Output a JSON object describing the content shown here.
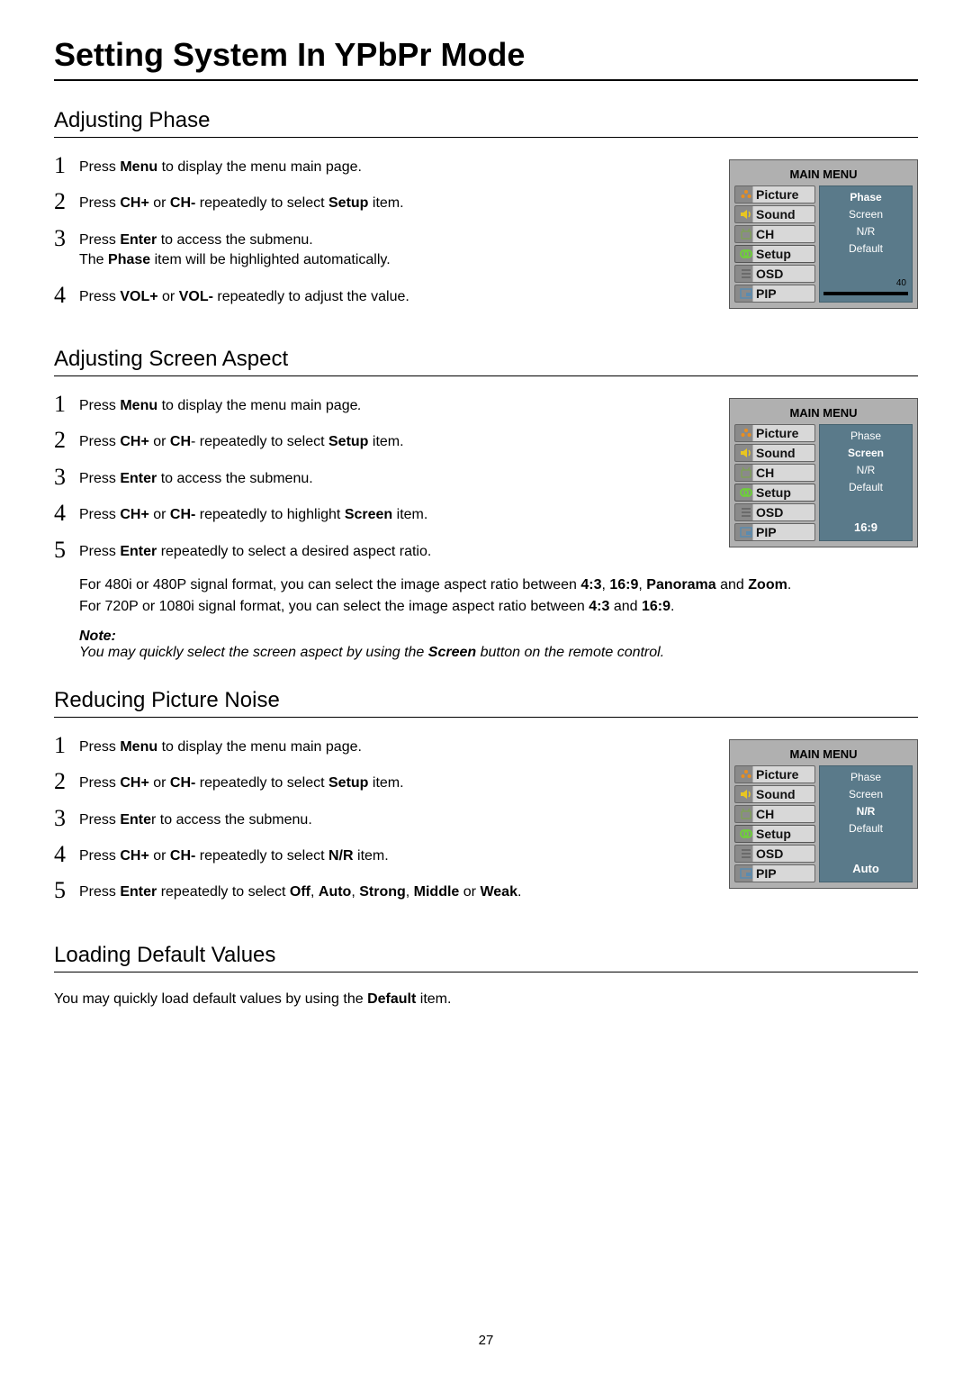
{
  "page_title": "Setting System In YPbPr Mode",
  "page_number": "27",
  "sections": {
    "phase": {
      "title": "Adjusting Phase",
      "steps": [
        "Press <b>Menu</b> to display the menu main page.",
        "Press <b>CH+</b> or <b>CH-</b> repeatedly to select <b>Setup</b> item.",
        "Press <b>Enter</b> to access the submenu.<br>The <b>Phase</b> item will be highlighted automatically.",
        "Press <b>VOL+</b> or <b>VOL-</b> repeatedly to adjust the value."
      ]
    },
    "aspect": {
      "title": "Adjusting Screen Aspect",
      "steps": [
        "Press <b>Menu</b> to display the menu main page<i>.</i>",
        "Press <b>CH+</b> or <b>CH</b>- repeatedly to select <b>Setup</b> item.",
        "Press <b>Enter</b> to access the submenu.",
        "Press <b>CH+</b> or <b>CH-</b> repeatedly to highlight <b>Screen</b> item.",
        "Press <b>Enter</b> repeatedly to select a desired aspect ratio."
      ],
      "body": "For 480i or 480P signal format, you can select the image aspect ratio between <b>4:3</b>, <b>16:9</b>, <b>Panorama</b> and <b>Zoom</b>.<br>For 720P or 1080i signal format, you can select the image aspect ratio between <b>4:3</b> and <b>16:9</b>.",
      "note_label": "Note:",
      "note_body": "You may quickly select the screen aspect by using the <b>Screen</b> button on the remote control."
    },
    "noise": {
      "title": "Reducing Picture Noise",
      "steps": [
        "Press <b>Menu</b> to display the menu main page.",
        "Press <b>CH+</b> or <b>CH-</b> repeatedly to select <b>Setup</b> item.",
        "Press <b>Ente</b>r to access the submenu.",
        "Press <b>CH+</b> or <b>CH-</b> repeatedly to select <b>N/R</b> item.",
        "Press <b>Enter</b> repeatedly to select <b>Off</b>, <b>Auto</b>, <b>Strong</b>, <b>Middle</b> or <b>Weak</b>."
      ]
    },
    "default": {
      "title": "Loading Default Values",
      "body": "You may quickly load default values by using the <b>Default</b> item."
    }
  },
  "osd": {
    "title": "MAIN MENU",
    "left_items": [
      {
        "label": "Picture",
        "icon_color": "#e98e1f",
        "icon": "picture"
      },
      {
        "label": "Sound",
        "icon_color": "#e9c61f",
        "icon": "sound"
      },
      {
        "label": "CH",
        "icon_color": "#7fa05a",
        "icon": "ch"
      },
      {
        "label": "Setup",
        "icon_color": "#6fcf3a",
        "icon": "setup"
      },
      {
        "label": "OSD",
        "icon_color": "#6b6b6b",
        "icon": "osd"
      },
      {
        "label": "PIP",
        "icon_color": "#5a8bb0",
        "icon": "pip"
      }
    ],
    "right_panels": {
      "phase": {
        "items": [
          "Phase",
          "Screen",
          "N/R",
          "Default"
        ],
        "bold_index": 0,
        "value_type": "slider",
        "value": "40"
      },
      "aspect": {
        "items": [
          "Phase",
          "Screen",
          "N/R",
          "Default"
        ],
        "bold_index": 1,
        "value_type": "text",
        "value": "16:9"
      },
      "noise": {
        "items": [
          "Phase",
          "Screen",
          "N/R",
          "Default"
        ],
        "bold_index": 2,
        "value_type": "text",
        "value": "Auto"
      }
    },
    "colors": {
      "box_bg": "#b0b0b0",
      "panel_bg": "#5a7a8a",
      "panel_text": "#ffffff"
    }
  }
}
